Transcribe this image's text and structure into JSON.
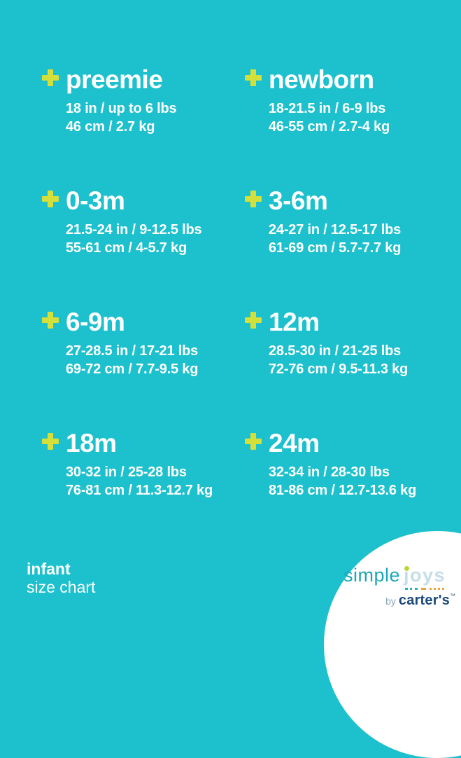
{
  "colors": {
    "background": "#1dc0cd",
    "plus_icon": "#d3e03b",
    "text": "#ffffff",
    "circle": "#ffffff",
    "logo_simple": "#1ba8b8",
    "logo_joys": "#c5dde9",
    "logo_j_dot": "#b9d53a",
    "logo_dots_teal": "#29b0bd",
    "logo_dots_orange": "#eba53f",
    "logo_by": "#8ba7bb",
    "logo_carters": "#1c4a7b"
  },
  "icons": {
    "plus-icon": "+"
  },
  "sizes": [
    {
      "name": "preemie",
      "imperial": "18 in / up to 6 lbs",
      "metric": "46 cm / 2.7 kg"
    },
    {
      "name": "newborn",
      "imperial": "18-21.5 in / 6-9 lbs",
      "metric": "46-55 cm / 2.7-4 kg"
    },
    {
      "name": "0-3m",
      "imperial": "21.5-24 in / 9-12.5 lbs",
      "metric": "55-61 cm / 4-5.7 kg"
    },
    {
      "name": "3-6m",
      "imperial": "24-27 in / 12.5-17 lbs",
      "metric": "61-69 cm / 5.7-7.7 kg"
    },
    {
      "name": "6-9m",
      "imperial": "27-28.5 in / 17-21 lbs",
      "metric": "69-72 cm / 7.7-9.5 kg"
    },
    {
      "name": "12m",
      "imperial": "28.5-30 in / 21-25 lbs",
      "metric": "72-76 cm / 9.5-11.3 kg"
    },
    {
      "name": "18m",
      "imperial": "30-32 in / 25-28 lbs",
      "metric": "76-81 cm / 11.3-12.7 kg"
    },
    {
      "name": "24m",
      "imperial": "32-34 in / 28-30 lbs",
      "metric": "81-86 cm / 12.7-13.6 kg"
    }
  ],
  "footer": {
    "category": "infant",
    "label": "size chart"
  },
  "logo": {
    "word1": "simple",
    "word2": "joys",
    "byline_prefix": "by",
    "byline_brand": "carter's",
    "trademark": "™"
  }
}
